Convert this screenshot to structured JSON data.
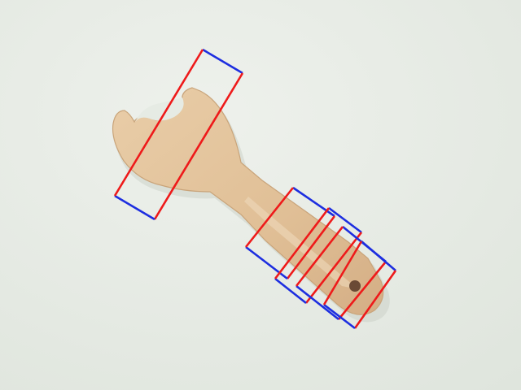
{
  "image": {
    "subject": "wooden-toy-wrench",
    "background_color": "#e6ebe4",
    "wood_color": "#e2c39d",
    "wood_shadow_color": "#c9a47a",
    "hole_color": "#6a4a35"
  },
  "grasp_annotations": {
    "edge_color_short_side": "#1d2ee0",
    "edge_color_long_side": "#ee1a1a",
    "count": 5
  }
}
